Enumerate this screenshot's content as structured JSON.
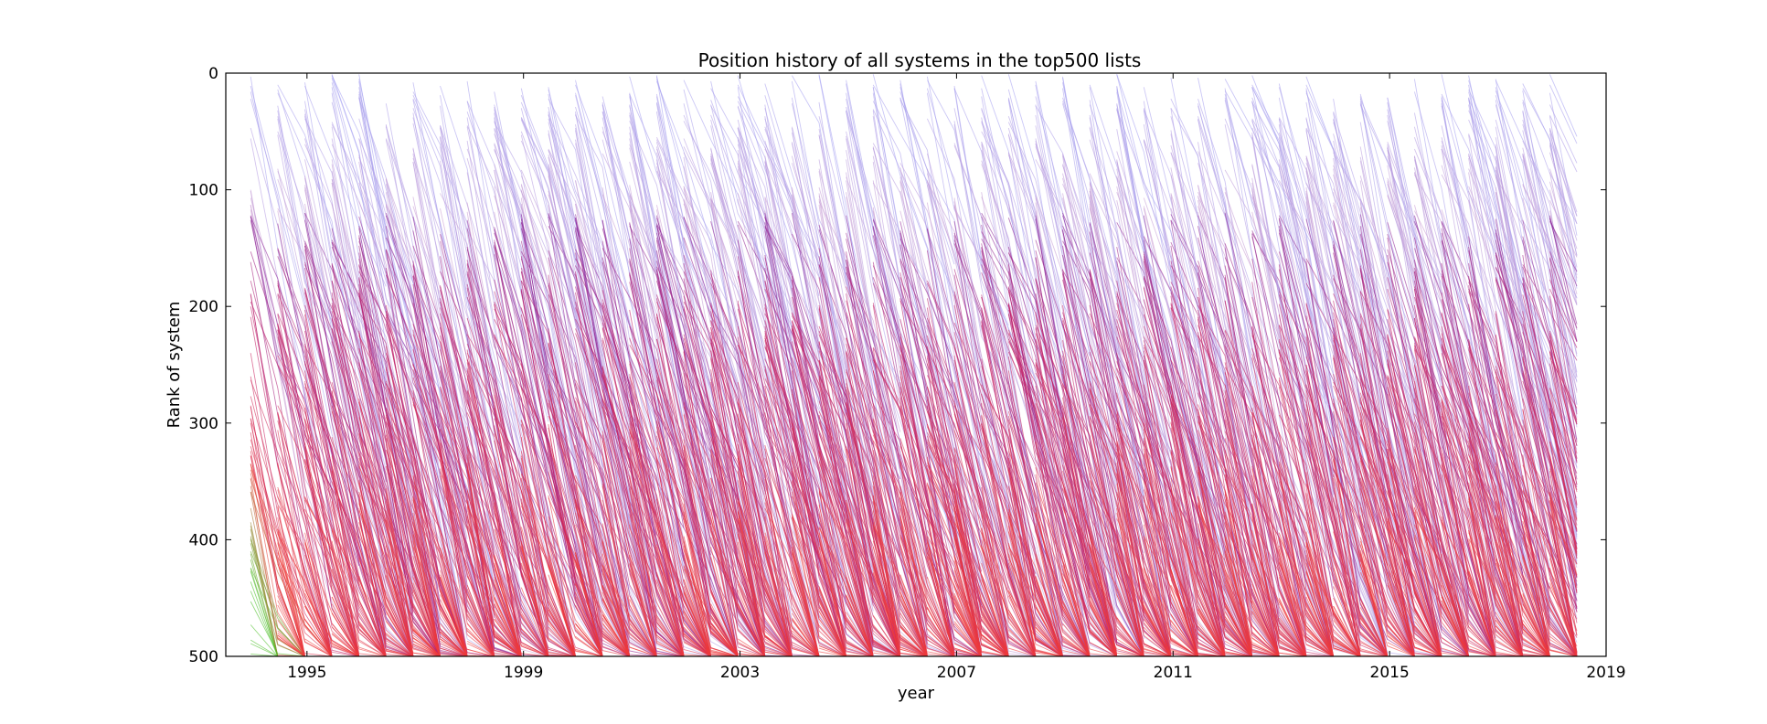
{
  "chart_data": {
    "type": "line",
    "title": "Position history of all systems in the top500 lists",
    "xlabel": "year",
    "ylabel": "Rank of system",
    "xlim": [
      1993.5,
      2019
    ],
    "ylim": [
      500,
      0
    ],
    "y_inverted": true,
    "grid": false,
    "legend": "none",
    "x_ticks": [
      1995,
      1999,
      2003,
      2007,
      2011,
      2015,
      2019
    ],
    "x_tick_labels": [
      "1995",
      "1999",
      "2003",
      "2007",
      "2011",
      "2015",
      "2019"
    ],
    "y_ticks": [
      0,
      100,
      200,
      300,
      400,
      500
    ],
    "y_tick_labels": [
      "0",
      "100",
      "200",
      "300",
      "400",
      "500"
    ],
    "list_dates": [
      1993.96,
      1994.46,
      1994.96,
      1995.46,
      1995.96,
      1996.46,
      1996.96,
      1997.46,
      1997.96,
      1998.46,
      1998.96,
      1999.46,
      1999.96,
      2000.46,
      2000.96,
      2001.46,
      2001.96,
      2002.46,
      2002.96,
      2003.46,
      2003.96,
      2004.46,
      2004.96,
      2005.46,
      2005.96,
      2006.46,
      2006.96,
      2007.46,
      2007.96,
      2008.46,
      2008.96,
      2009.46,
      2009.96,
      2010.46,
      2010.96,
      2011.46,
      2011.96,
      2012.46,
      2012.96,
      2013.46,
      2013.96,
      2014.46,
      2014.96,
      2015.46,
      2015.96,
      2016.46,
      2016.96,
      2017.46,
      2017.96,
      2018.46
    ],
    "color_scale": {
      "description": "line color by starting rank",
      "top_rank_color": "#3b2ee0",
      "mid_rank_color": "#c0206a",
      "low_rank_color": "#ee3b3b",
      "entry_rank_color": "#4fc02a"
    },
    "line_opacity": 0.35
  }
}
